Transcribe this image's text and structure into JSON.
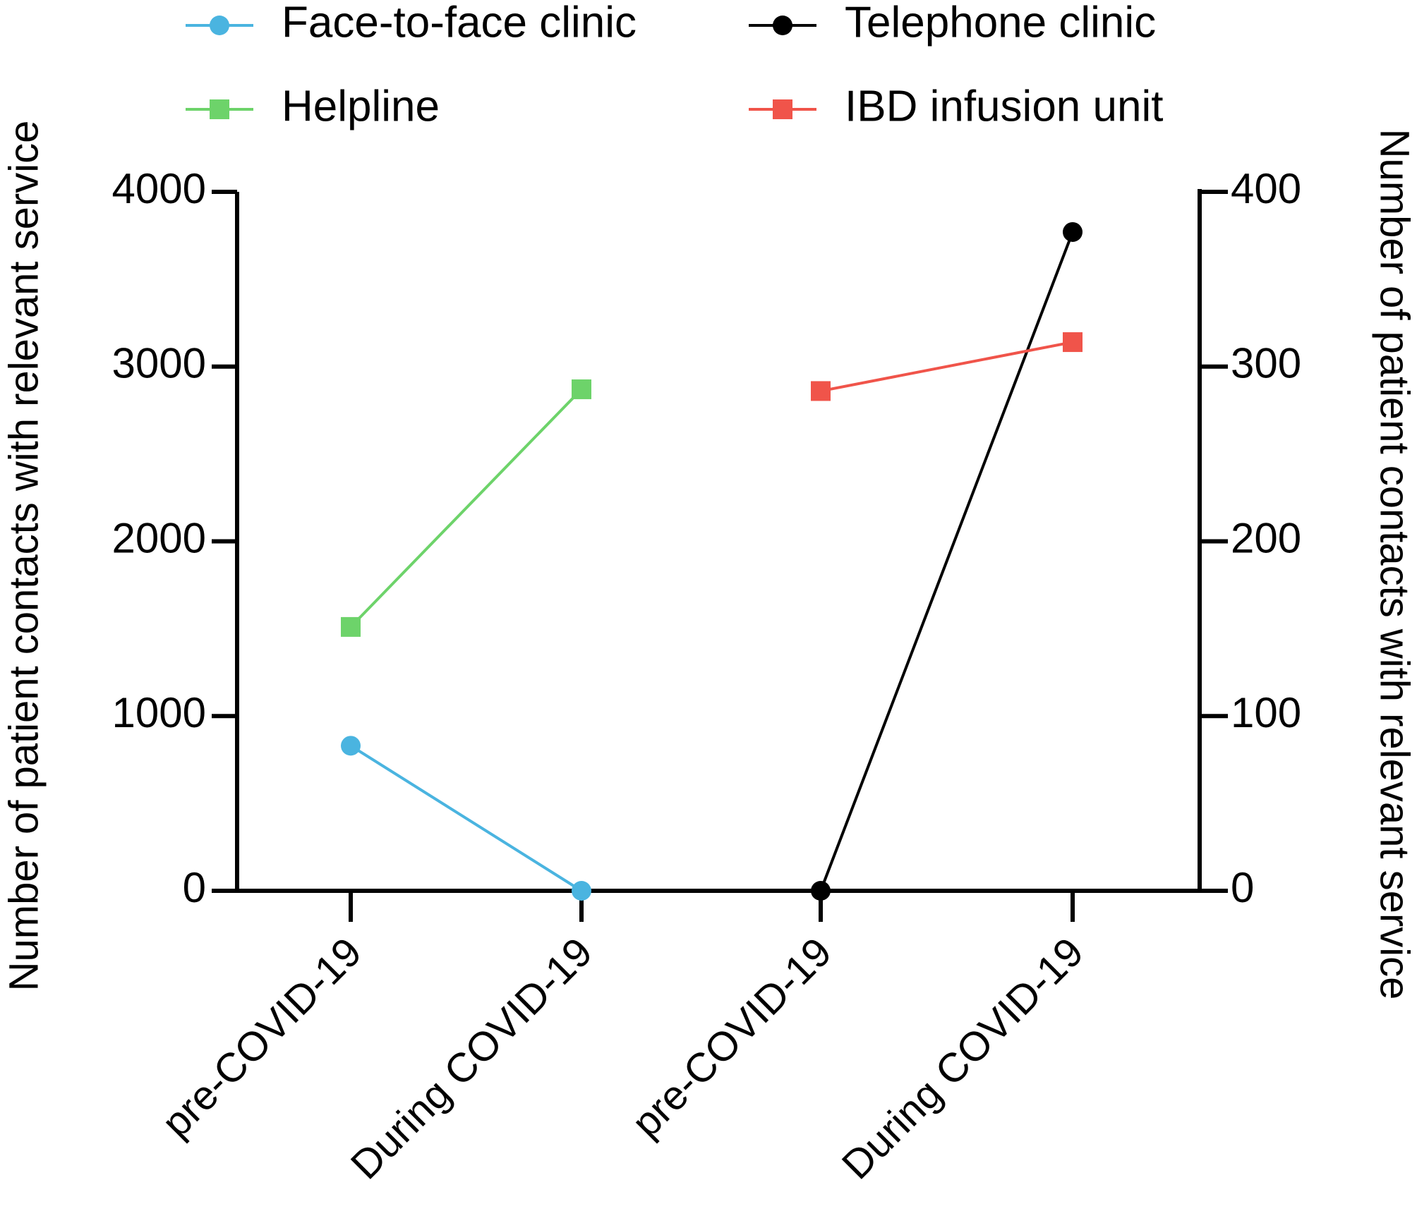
{
  "chart_data": {
    "type": "line",
    "categories": [
      "pre-COVID-19",
      "During COVID-19",
      "pre-COVID-19",
      "During COVID-19"
    ],
    "y_label": "Number of patient contacts with relevant service",
    "y2_label": "Number of patient contacts with relevant service",
    "ylim": [
      0,
      4000
    ],
    "yticks": [
      0,
      1000,
      2000,
      3000,
      4000
    ],
    "y2lim": [
      0,
      400
    ],
    "y2ticks": [
      0,
      100,
      200,
      300,
      400
    ],
    "grid": false,
    "legend": "top",
    "series": [
      {
        "name": "Face-to-face clinic",
        "color": "#4ab4e0",
        "marker": "circle",
        "axis": "y",
        "values": [
          830,
          0,
          null,
          null
        ]
      },
      {
        "name": "Telephone clinic",
        "color": "#000000",
        "marker": "circle",
        "axis": "y2",
        "values": [
          null,
          null,
          0,
          377
        ]
      },
      {
        "name": "Helpline",
        "color": "#6dd36a",
        "marker": "square",
        "axis": "y",
        "values": [
          1510,
          2870,
          null,
          null
        ]
      },
      {
        "name": "IBD infusion unit",
        "color": "#f0544a",
        "marker": "square",
        "axis": "y2",
        "values": [
          null,
          null,
          286,
          314
        ]
      }
    ]
  }
}
